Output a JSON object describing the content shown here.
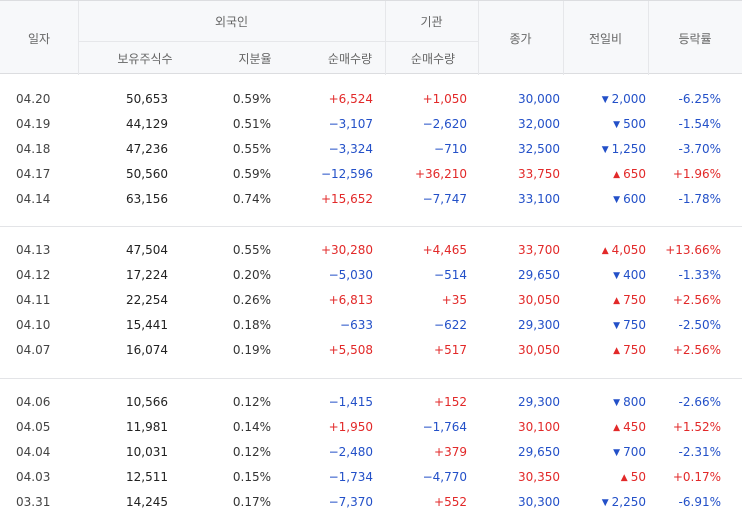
{
  "headers": {
    "date": "일자",
    "foreign": "외국인",
    "holdings": "보유주식수",
    "share": "지분율",
    "foreign_net": "순매수량",
    "institution": "기관",
    "inst_net": "순매수량",
    "close": "종가",
    "change": "전일비",
    "rate": "등락률"
  },
  "groups": [
    {
      "rows": [
        {
          "date": "04.20",
          "holdings": "50,653",
          "share": "0.59%",
          "foreign_net": "+6,524",
          "inst_net": "+1,050",
          "close": "30,000",
          "change": "2,000",
          "dir": "down",
          "rate": "-6.25%"
        },
        {
          "date": "04.19",
          "holdings": "44,129",
          "share": "0.51%",
          "foreign_net": "−3,107",
          "inst_net": "−2,620",
          "close": "32,000",
          "change": "500",
          "dir": "down",
          "rate": "-1.54%"
        },
        {
          "date": "04.18",
          "holdings": "47,236",
          "share": "0.55%",
          "foreign_net": "−3,324",
          "inst_net": "−710",
          "close": "32,500",
          "change": "1,250",
          "dir": "down",
          "rate": "-3.70%"
        },
        {
          "date": "04.17",
          "holdings": "50,560",
          "share": "0.59%",
          "foreign_net": "−12,596",
          "inst_net": "+36,210",
          "close": "33,750",
          "change": "650",
          "dir": "up",
          "rate": "+1.96%"
        },
        {
          "date": "04.14",
          "holdings": "63,156",
          "share": "0.74%",
          "foreign_net": "+15,652",
          "inst_net": "−7,747",
          "close": "33,100",
          "change": "600",
          "dir": "down",
          "rate": "-1.78%"
        }
      ]
    },
    {
      "rows": [
        {
          "date": "04.13",
          "holdings": "47,504",
          "share": "0.55%",
          "foreign_net": "+30,280",
          "inst_net": "+4,465",
          "close": "33,700",
          "change": "4,050",
          "dir": "up",
          "rate": "+13.66%"
        },
        {
          "date": "04.12",
          "holdings": "17,224",
          "share": "0.20%",
          "foreign_net": "−5,030",
          "inst_net": "−514",
          "close": "29,650",
          "change": "400",
          "dir": "down",
          "rate": "-1.33%"
        },
        {
          "date": "04.11",
          "holdings": "22,254",
          "share": "0.26%",
          "foreign_net": "+6,813",
          "inst_net": "+35",
          "close": "30,050",
          "change": "750",
          "dir": "up",
          "rate": "+2.56%"
        },
        {
          "date": "04.10",
          "holdings": "15,441",
          "share": "0.18%",
          "foreign_net": "−633",
          "inst_net": "−622",
          "close": "29,300",
          "change": "750",
          "dir": "down",
          "rate": "-2.50%"
        },
        {
          "date": "04.07",
          "holdings": "16,074",
          "share": "0.19%",
          "foreign_net": "+5,508",
          "inst_net": "+517",
          "close": "30,050",
          "change": "750",
          "dir": "up",
          "rate": "+2.56%"
        }
      ]
    },
    {
      "rows": [
        {
          "date": "04.06",
          "holdings": "10,566",
          "share": "0.12%",
          "foreign_net": "−1,415",
          "inst_net": "+152",
          "close": "29,300",
          "change": "800",
          "dir": "down",
          "rate": "-2.66%"
        },
        {
          "date": "04.05",
          "holdings": "11,981",
          "share": "0.14%",
          "foreign_net": "+1,950",
          "inst_net": "−1,764",
          "close": "30,100",
          "change": "450",
          "dir": "up",
          "rate": "+1.52%"
        },
        {
          "date": "04.04",
          "holdings": "10,031",
          "share": "0.12%",
          "foreign_net": "−2,480",
          "inst_net": "+379",
          "close": "29,650",
          "change": "700",
          "dir": "down",
          "rate": "-2.31%"
        },
        {
          "date": "04.03",
          "holdings": "12,511",
          "share": "0.15%",
          "foreign_net": "−1,734",
          "inst_net": "−4,770",
          "close": "30,350",
          "change": "50",
          "dir": "up",
          "rate": "+0.17%"
        },
        {
          "date": "03.31",
          "holdings": "14,245",
          "share": "0.17%",
          "foreign_net": "−7,370",
          "inst_net": "+552",
          "close": "30,300",
          "change": "2,250",
          "dir": "down",
          "rate": "-6.91%"
        }
      ]
    }
  ],
  "colors": {
    "up": "#e22929",
    "down": "#2350c8"
  },
  "icons": {
    "up": "triangle-up-icon",
    "down": "triangle-down-icon"
  }
}
